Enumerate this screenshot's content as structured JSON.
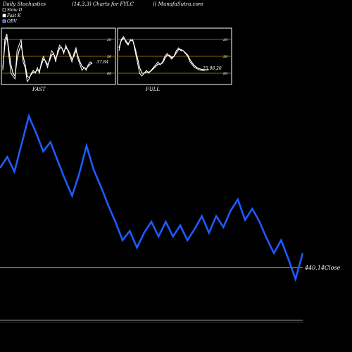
{
  "header": {
    "left": "Daily Stochastics",
    "middle": "(14,3,3) Charts for FYLC",
    "right": "(( MunafaSutra.com"
  },
  "legend": [
    {
      "label": "Slow  D",
      "swatch_color": "#000000"
    },
    {
      "label": "Fast K",
      "swatch_color": "#ffffff"
    },
    {
      "label": "OBV",
      "swatch_color": "#1e5bff"
    }
  ],
  "panels": [
    {
      "label": "FAST",
      "last_value": "37.84"
    },
    {
      "label": "FULL",
      "last_value": "25.98,20"
    }
  ],
  "close_label": "440.14Close",
  "colors": {
    "background": "#000000",
    "obv_line": "#1e5bff",
    "stoch_line": "#ffffff",
    "level_line": "#b8860b",
    "panel_border": "#ffffff"
  },
  "chart_data": [
    {
      "type": "line",
      "panel": "FAST",
      "ylim": [
        0,
        100
      ],
      "levels": [
        20,
        50,
        80
      ],
      "tick_labels": [
        "80",
        "50",
        "20"
      ],
      "series": [
        {
          "values": [
            25,
            80,
            90,
            50,
            20,
            15,
            10,
            60,
            70,
            80,
            40,
            30,
            5,
            10,
            20,
            25,
            20,
            30,
            20,
            40,
            50,
            40,
            30,
            45,
            60,
            55,
            40,
            60,
            70,
            65,
            55,
            70,
            60,
            50,
            40,
            55,
            65,
            45,
            35,
            25,
            30,
            25,
            35,
            40,
            38
          ]
        },
        {
          "values": [
            30,
            70,
            85,
            60,
            35,
            20,
            15,
            45,
            60,
            70,
            50,
            35,
            15,
            12,
            18,
            22,
            22,
            26,
            24,
            35,
            45,
            42,
            35,
            42,
            52,
            55,
            45,
            55,
            65,
            65,
            58,
            65,
            62,
            55,
            45,
            50,
            60,
            50,
            40,
            32,
            30,
            28,
            32,
            36,
            37.84
          ]
        }
      ]
    },
    {
      "type": "line",
      "panel": "FULL",
      "ylim": [
        0,
        100
      ],
      "levels": [
        20,
        50,
        80
      ],
      "tick_labels": [
        "80",
        "50",
        "20"
      ],
      "series": [
        {
          "values": [
            60,
            80,
            85,
            75,
            70,
            80,
            80,
            60,
            40,
            20,
            15,
            20,
            25,
            20,
            25,
            30,
            35,
            40,
            35,
            40,
            50,
            55,
            50,
            45,
            50,
            60,
            65,
            60,
            60,
            55,
            50,
            40,
            35,
            30,
            28,
            26,
            25,
            25,
            26,
            26
          ]
        },
        {
          "values": [
            65,
            78,
            82,
            78,
            72,
            78,
            78,
            65,
            48,
            30,
            20,
            20,
            22,
            22,
            24,
            28,
            32,
            36,
            36,
            38,
            46,
            52,
            52,
            48,
            50,
            56,
            62,
            62,
            60,
            56,
            52,
            44,
            38,
            33,
            30,
            28,
            27,
            26,
            26,
            25.98
          ]
        }
      ]
    },
    {
      "type": "line",
      "panel": "OBV",
      "series": [
        {
          "name": "OBV",
          "values": [
            0.72,
            0.78,
            0.7,
            0.85,
            1.0,
            0.91,
            0.81,
            0.86,
            0.76,
            0.66,
            0.57,
            0.69,
            0.84,
            0.71,
            0.62,
            0.52,
            0.43,
            0.33,
            0.38,
            0.29,
            0.37,
            0.43,
            0.35,
            0.43,
            0.35,
            0.41,
            0.33,
            0.39,
            0.46,
            0.37,
            0.46,
            0.4,
            0.49,
            0.55,
            0.44,
            0.5,
            0.43,
            0.34,
            0.26,
            0.33,
            0.23,
            0.12,
            0.26
          ]
        }
      ]
    }
  ]
}
